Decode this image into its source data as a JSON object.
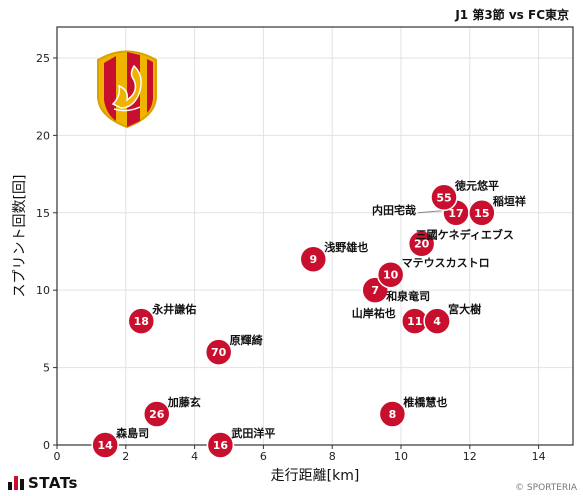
{
  "header": {
    "title": "J1 第3節 vs FC東京"
  },
  "footer": {
    "brand": "STATs",
    "credit": "© SPORTERIA"
  },
  "chart_data": {
    "type": "scatter",
    "title": "J1 第3節 vs FC東京",
    "xlabel": "走行距離[km]",
    "ylabel": "スプリント回数[回]",
    "xlim": [
      0,
      15
    ],
    "ylim": [
      0,
      27
    ],
    "xticks": [
      0,
      2,
      4,
      6,
      8,
      10,
      12,
      14
    ],
    "yticks": [
      0,
      5,
      10,
      15,
      20,
      25
    ],
    "grid": true,
    "marker_color": "#c8102e",
    "points": [
      {
        "number": "14",
        "name": "森島司",
        "x": 1.4,
        "y": 0,
        "label_pos": "right"
      },
      {
        "number": "16",
        "name": "武田洋平",
        "x": 4.75,
        "y": 0,
        "label_pos": "right"
      },
      {
        "number": "26",
        "name": "加藤玄",
        "x": 2.9,
        "y": 2,
        "label_pos": "right"
      },
      {
        "number": "8",
        "name": "椎橋慧也",
        "x": 9.75,
        "y": 2,
        "label_pos": "right"
      },
      {
        "number": "70",
        "name": "原輝綺",
        "x": 4.7,
        "y": 6,
        "label_pos": "right"
      },
      {
        "number": "18",
        "name": "永井謙佑",
        "x": 2.45,
        "y": 8,
        "label_pos": "right"
      },
      {
        "number": "11",
        "name": "山岸祐也",
        "x": 10.4,
        "y": 8,
        "label_pos": "left"
      },
      {
        "number": "4",
        "name": "宮大樹",
        "x": 11.05,
        "y": 8,
        "label_pos": "right"
      },
      {
        "number": "7",
        "name": "和泉竜司",
        "x": 9.25,
        "y": 10,
        "label_pos": "below-right"
      },
      {
        "number": "10",
        "name": "マテウスカストロ",
        "x": 9.7,
        "y": 11,
        "label_pos": "right"
      },
      {
        "number": "9",
        "name": "浅野雄也",
        "x": 7.45,
        "y": 12,
        "label_pos": "right"
      },
      {
        "number": "20",
        "name": "三國ケネディエブス",
        "x": 10.6,
        "y": 13,
        "label_pos": "above-right"
      },
      {
        "number": "17",
        "name": "内田宅哉",
        "x": 11.6,
        "y": 15,
        "label_pos": "left"
      },
      {
        "number": "15",
        "name": "稲垣祥",
        "x": 12.35,
        "y": 15,
        "label_pos": "right"
      },
      {
        "number": "55",
        "name": "徳元悠平",
        "x": 11.25,
        "y": 16,
        "label_pos": "right"
      }
    ]
  }
}
